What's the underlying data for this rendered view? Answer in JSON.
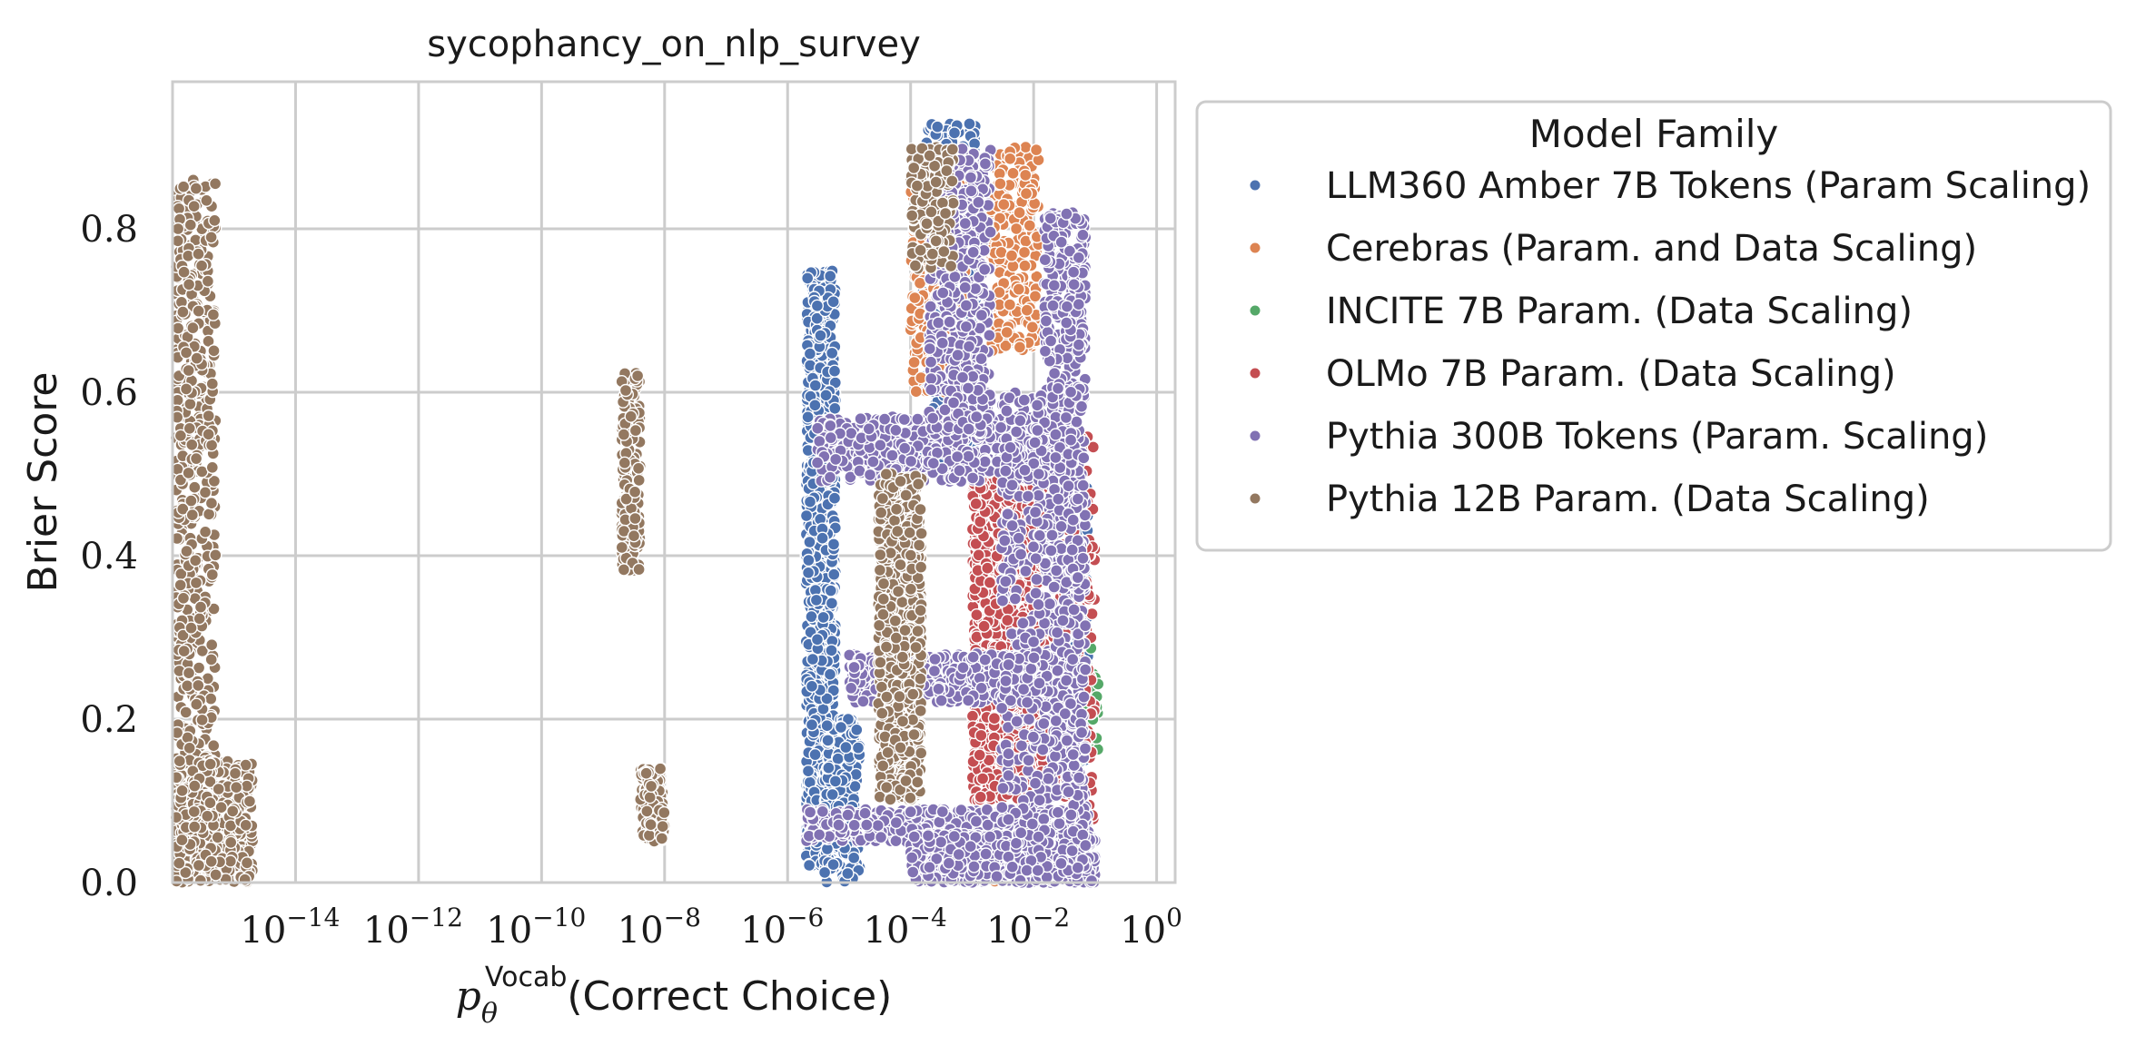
{
  "chart_data": {
    "type": "scatter",
    "title": "sycophancy_on_nlp_survey",
    "xlabel": "p_θ^Vocab(Correct Choice)",
    "xlabel_parts": {
      "p": "p",
      "sub": "θ",
      "sup": "Vocab",
      "rest": "(Correct Choice)"
    },
    "ylabel": "Brier Score",
    "x_scale": "log",
    "xlim": [
      1e-16,
      2
    ],
    "ylim": [
      0,
      0.98
    ],
    "grid": true,
    "x_ticks": [
      {
        "value": 1e-14,
        "base": "10",
        "exp": "−14"
      },
      {
        "value": 1e-12,
        "base": "10",
        "exp": "−12"
      },
      {
        "value": 1e-10,
        "base": "10",
        "exp": "−10"
      },
      {
        "value": 1e-08,
        "base": "10",
        "exp": "−8"
      },
      {
        "value": 1e-06,
        "base": "10",
        "exp": "−6"
      },
      {
        "value": 0.0001,
        "base": "10",
        "exp": "−4"
      },
      {
        "value": 0.01,
        "base": "10",
        "exp": "−2"
      },
      {
        "value": 1,
        "base": "10",
        "exp": "0"
      }
    ],
    "y_ticks": [
      {
        "value": 0.0,
        "label": "0.0"
      },
      {
        "value": 0.2,
        "label": "0.2"
      },
      {
        "value": 0.4,
        "label": "0.4"
      },
      {
        "value": 0.6,
        "label": "0.6"
      },
      {
        "value": 0.8,
        "label": "0.8"
      }
    ],
    "legend": {
      "title": "Model Family",
      "placement": "outside-right"
    },
    "series": [
      {
        "name": "LLM360 Amber 7B Tokens (Param Scaling)",
        "color": "#4c72b0",
        "clusters": [
          {
            "x_range": [
              2e-06,
              6e-06
            ],
            "y_range": [
              0.02,
              0.75
            ],
            "n": 900
          },
          {
            "x_range": [
              4e-06,
              1.5e-05
            ],
            "y_range": [
              0.0,
              0.2
            ],
            "n": 200
          },
          {
            "x_range": [
              0.00015,
              0.0012
            ],
            "y_range": [
              0.5,
              0.93
            ],
            "n": 450
          },
          {
            "x_range": [
              0.03,
              0.08
            ],
            "y_range": [
              0.0,
              0.5
            ],
            "n": 150
          }
        ]
      },
      {
        "name": "Cerebras (Param. and Data Scaling)",
        "color": "#dd8452",
        "clusters": [
          {
            "x_range": [
              0.0001,
              0.0008
            ],
            "y_range": [
              0.6,
              0.88
            ],
            "n": 250
          },
          {
            "x_range": [
              0.002,
              0.012
            ],
            "y_range": [
              0.65,
              0.9
            ],
            "n": 250
          },
          {
            "x_range": [
              0.001,
              0.02
            ],
            "y_range": [
              0.0,
              0.05
            ],
            "n": 100
          }
        ]
      },
      {
        "name": "INCITE 7B Param. (Data Scaling)",
        "color": "#55a868",
        "clusters": [
          {
            "x_range": [
              0.05,
              0.12
            ],
            "y_range": [
              0.15,
              0.3
            ],
            "n": 25
          }
        ]
      },
      {
        "name": "OLMo 7B Param. (Data Scaling)",
        "color": "#c44e52",
        "clusters": [
          {
            "x_range": [
              0.001,
              0.015
            ],
            "y_range": [
              0.1,
              0.5
            ],
            "n": 800
          },
          {
            "x_range": [
              0.02,
              0.1
            ],
            "y_range": [
              0.0,
              0.55
            ],
            "n": 250
          }
        ]
      },
      {
        "name": "Pythia 300B Tokens (Param. Scaling)",
        "color": "#8172b3",
        "clusters": [
          {
            "x_range": [
              3e-06,
              0.04
            ],
            "y_range": [
              0.49,
              0.57
            ],
            "n": 500
          },
          {
            "x_range": [
              1e-05,
              0.03
            ],
            "y_range": [
              0.22,
              0.28
            ],
            "n": 400
          },
          {
            "x_range": [
              2e-06,
              0.08
            ],
            "y_range": [
              0.05,
              0.09
            ],
            "n": 400
          },
          {
            "x_range": [
              0.0001,
              0.1
            ],
            "y_range": [
              0.0,
              0.06
            ],
            "n": 700
          },
          {
            "x_range": [
              0.0002,
              0.002
            ],
            "y_range": [
              0.55,
              0.9
            ],
            "n": 500
          },
          {
            "x_range": [
              0.015,
              0.07
            ],
            "y_range": [
              0.0,
              0.82
            ],
            "n": 900
          },
          {
            "x_range": [
              0.003,
              0.015
            ],
            "y_range": [
              0.0,
              0.6
            ],
            "n": 300
          }
        ]
      },
      {
        "name": "Pythia 12B Param. (Data Scaling)",
        "color": "#937860",
        "clusters": [
          {
            "x_range": [
              1e-16,
              5e-16
            ],
            "y_range": [
              0.0,
              0.86
            ],
            "n": 600
          },
          {
            "x_range": [
              1e-16,
              2e-15
            ],
            "y_range": [
              0.0,
              0.15
            ],
            "n": 400
          },
          {
            "x_range": [
              2e-09,
              4e-09
            ],
            "y_range": [
              0.38,
              0.63
            ],
            "n": 180
          },
          {
            "x_range": [
              4e-09,
              1e-08
            ],
            "y_range": [
              0.05,
              0.14
            ],
            "n": 120
          },
          {
            "x_range": [
              3e-05,
              0.00015
            ],
            "y_range": [
              0.1,
              0.5
            ],
            "n": 800
          },
          {
            "x_range": [
              0.0001,
              0.0005
            ],
            "y_range": [
              0.75,
              0.9
            ],
            "n": 150
          }
        ]
      }
    ]
  }
}
